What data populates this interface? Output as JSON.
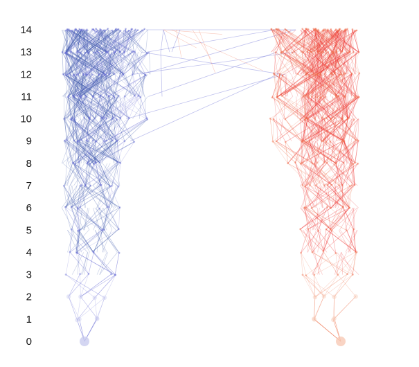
{
  "axis": {
    "labels": [
      "0",
      "1",
      "2",
      "3",
      "4",
      "5",
      "6",
      "7",
      "8",
      "9",
      "10",
      "11",
      "12",
      "13",
      "14"
    ]
  },
  "colors": {
    "blue_strong": "#3a56a8",
    "blue_light": "#6f73d6",
    "blue_faint": "#c9ccef",
    "red_strong": "#ee2b2b",
    "red_light": "#f07654",
    "red_faint": "#f7c9b5",
    "background": "#ffffff"
  }
}
